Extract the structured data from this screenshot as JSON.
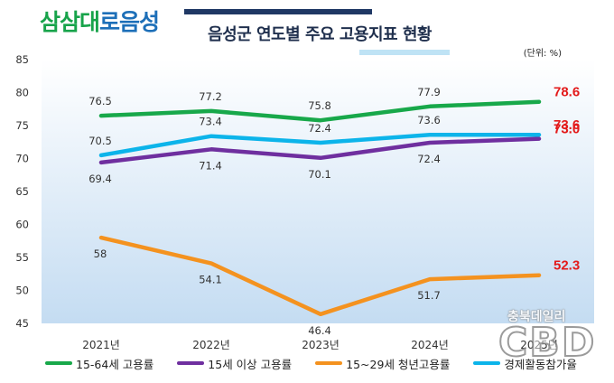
{
  "logo": {
    "part_a": "삼삼대",
    "part_b": "로음성"
  },
  "title": "음성군 연도별 주요 고용지표 현황",
  "unit_label": "(단위: %)",
  "watermark": {
    "line1": "충북데일리",
    "line2": "CBD"
  },
  "colors": {
    "series": [
      "#18a84a",
      "#6f2f9f",
      "#f4921f",
      "#0cb4ea"
    ],
    "highlight_label": "#e31a1a",
    "plot_bg_top": "#ffffff",
    "plot_bg_bottom": "#c4dcf2",
    "axis_text": "#333333"
  },
  "chart_data": {
    "type": "line",
    "title": "음성군 연도별 주요 고용지표 현황",
    "categories": [
      "2021년",
      "2022년",
      "2023년",
      "2024년",
      "2025년"
    ],
    "ylim": [
      45,
      85
    ],
    "yticks": [
      "45",
      "50",
      "55",
      "60",
      "65",
      "70",
      "75",
      "80",
      "85"
    ],
    "grid": false,
    "legend": "bottom",
    "series": [
      {
        "name": "15-64세 고용률",
        "values": [
          76.5,
          77.2,
          75.8,
          77.9,
          78.6
        ],
        "labels": [
          "76.5",
          "77.2",
          "75.8",
          "77.9",
          "78.6"
        ],
        "label_side": "above"
      },
      {
        "name": "15세 이상 고용률",
        "values": [
          69.4,
          71.4,
          70.1,
          72.4,
          73.0
        ],
        "labels": [
          "69.4",
          "71.4",
          "70.1",
          "72.4",
          "73.0"
        ],
        "label_side": "below"
      },
      {
        "name": "15~29세 청년고용률",
        "values": [
          58,
          54.1,
          46.4,
          51.7,
          52.3
        ],
        "labels": [
          "58",
          "54.1",
          "46.4",
          "51.7",
          "52.3"
        ],
        "label_side": "below"
      },
      {
        "name": "경제활동참가율",
        "values": [
          70.5,
          73.4,
          72.4,
          73.6,
          73.6
        ],
        "labels": [
          "70.5",
          "73.4",
          "72.4",
          "73.6",
          "73.6"
        ],
        "label_side": "above"
      }
    ]
  }
}
